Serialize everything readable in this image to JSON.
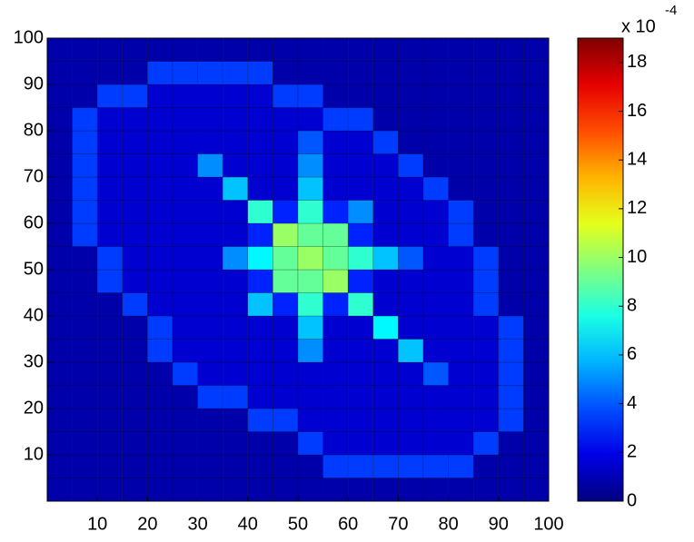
{
  "chart_data": {
    "type": "heatmap",
    "colormap": "jet",
    "xlim": [
      0,
      100
    ],
    "ylim": [
      0,
      100
    ],
    "xticks": [
      10,
      20,
      30,
      40,
      50,
      60,
      70,
      80,
      90,
      100
    ],
    "yticks": [
      10,
      20,
      30,
      40,
      50,
      60,
      70,
      80,
      90,
      100
    ],
    "xbins": [
      0,
      5,
      10,
      15,
      20,
      25,
      30,
      35,
      40,
      45,
      50,
      55,
      60,
      65,
      70,
      75,
      80,
      85,
      90,
      95,
      100
    ],
    "ybins": [
      0,
      5,
      10,
      15,
      20,
      25,
      30,
      35,
      40,
      45,
      50,
      55,
      60,
      65,
      70,
      75,
      80,
      85,
      90,
      95,
      100
    ],
    "clim": [
      0,
      19
    ],
    "cticks": [
      0,
      2,
      4,
      6,
      8,
      10,
      12,
      14,
      16,
      18
    ],
    "colorbar_label": "x 10",
    "colorbar_exponent": "-4",
    "values": [
      [
        0.8,
        0.8,
        0.8,
        0.8,
        0.8,
        0.8,
        0.8,
        0.8,
        0.8,
        0.8,
        0.8,
        0.8,
        0.8,
        0.8,
        0.8,
        0.8,
        0.8,
        0.8,
        0.8,
        0.8
      ],
      [
        0.8,
        0.8,
        0.8,
        0.8,
        0.8,
        0.8,
        0.8,
        0.8,
        0.8,
        0.8,
        0.8,
        3.5,
        3.5,
        3.5,
        3.5,
        3.5,
        3.5,
        0.8,
        0.8,
        0.8
      ],
      [
        0.8,
        0.8,
        0.8,
        0.8,
        0.8,
        0.8,
        0.8,
        0.8,
        0.8,
        0.8,
        3.5,
        1.5,
        1.5,
        1.5,
        1.5,
        1.5,
        1.5,
        3.5,
        0.8,
        0.8
      ],
      [
        0.8,
        0.8,
        0.8,
        0.8,
        0.8,
        0.8,
        0.8,
        0.8,
        3.5,
        3.5,
        1.5,
        1.5,
        1.5,
        1.5,
        1.5,
        1.5,
        1.5,
        1.5,
        3.5,
        0.8
      ],
      [
        0.8,
        0.8,
        0.8,
        0.8,
        0.8,
        0.8,
        3.5,
        3.5,
        1.5,
        1.5,
        1.5,
        1.5,
        1.5,
        1.5,
        1.5,
        1.5,
        1.5,
        1.5,
        3.5,
        0.8
      ],
      [
        0.8,
        0.8,
        0.8,
        0.8,
        0.8,
        3.5,
        1.5,
        1.5,
        1.5,
        1.5,
        1.5,
        1.5,
        1.5,
        1.5,
        1.5,
        4,
        1.5,
        1.5,
        3.5,
        0.8
      ],
      [
        0.8,
        0.8,
        0.8,
        0.8,
        3.5,
        1.5,
        1.5,
        1.5,
        1.5,
        1.5,
        5,
        1.5,
        1.5,
        1.5,
        6,
        1.5,
        1.5,
        1.5,
        3.5,
        0.8
      ],
      [
        0.8,
        0.8,
        0.8,
        0.8,
        3.5,
        1.5,
        1.5,
        1.5,
        1.5,
        1.5,
        6,
        1.5,
        1.5,
        7,
        1.5,
        1.5,
        1.5,
        1.5,
        3.5,
        0.8
      ],
      [
        0.8,
        0.8,
        0.8,
        3.5,
        1.5,
        1.5,
        1.5,
        1.5,
        6,
        3,
        8,
        3,
        8,
        1.5,
        1.5,
        1.5,
        1.5,
        3.5,
        0.8,
        0.8
      ],
      [
        0.8,
        0.8,
        3.5,
        1.5,
        1.5,
        1.5,
        1.5,
        1.5,
        3,
        9,
        9,
        10,
        3,
        1.5,
        1.5,
        1.5,
        1.5,
        3.5,
        0.8,
        0.8
      ],
      [
        0.8,
        0.8,
        3.5,
        1.5,
        1.5,
        1.5,
        1.5,
        5,
        7,
        9,
        10,
        9,
        8,
        6,
        4,
        1.5,
        1.5,
        3.5,
        0.8,
        0.8
      ],
      [
        0.8,
        3.5,
        1.5,
        1.5,
        1.5,
        1.5,
        1.5,
        1.5,
        3,
        10,
        9,
        9,
        3,
        1.5,
        1.5,
        1.5,
        3.5,
        0.8,
        0.8,
        0.8
      ],
      [
        0.8,
        3.5,
        1.5,
        1.5,
        1.5,
        1.5,
        1.5,
        1.5,
        8,
        3,
        8,
        3,
        5,
        1.5,
        1.5,
        1.5,
        3.5,
        0.8,
        0.8,
        0.8
      ],
      [
        0.8,
        3.5,
        1.5,
        1.5,
        1.5,
        1.5,
        1.5,
        6,
        1.5,
        1.5,
        6,
        1.5,
        1.5,
        1.5,
        1.5,
        3.5,
        0.8,
        0.8,
        0.8,
        0.8
      ],
      [
        0.8,
        3.5,
        1.5,
        1.5,
        1.5,
        1.5,
        5,
        1.5,
        1.5,
        1.5,
        5,
        1.5,
        1.5,
        1.5,
        3.5,
        0.8,
        0.8,
        0.8,
        0.8,
        0.8
      ],
      [
        0.8,
        3.5,
        1.5,
        1.5,
        1.5,
        1.5,
        1.5,
        1.5,
        1.5,
        1.5,
        4,
        1.5,
        1.5,
        3.5,
        0.8,
        0.8,
        0.8,
        0.8,
        0.8,
        0.8
      ],
      [
        0.8,
        3.5,
        1.5,
        1.5,
        1.5,
        1.5,
        1.5,
        1.5,
        1.5,
        1.5,
        1.5,
        3.5,
        3.5,
        0.8,
        0.8,
        0.8,
        0.8,
        0.8,
        0.8,
        0.8
      ],
      [
        0.8,
        0.8,
        3.5,
        3.5,
        1.5,
        1.5,
        1.5,
        1.5,
        1.5,
        3.5,
        3.5,
        0.8,
        0.8,
        0.8,
        0.8,
        0.8,
        0.8,
        0.8,
        0.8,
        0.8
      ],
      [
        0.8,
        0.8,
        0.8,
        0.8,
        3.5,
        3.5,
        3.5,
        3.5,
        3.5,
        0.8,
        0.8,
        0.8,
        0.8,
        0.8,
        0.8,
        0.8,
        0.8,
        0.8,
        0.8,
        0.8
      ],
      [
        0.8,
        0.8,
        0.8,
        0.8,
        0.8,
        0.8,
        0.8,
        0.8,
        0.8,
        0.8,
        0.8,
        0.8,
        0.8,
        0.8,
        0.8,
        0.8,
        0.8,
        0.8,
        0.8,
        0.8
      ]
    ]
  }
}
